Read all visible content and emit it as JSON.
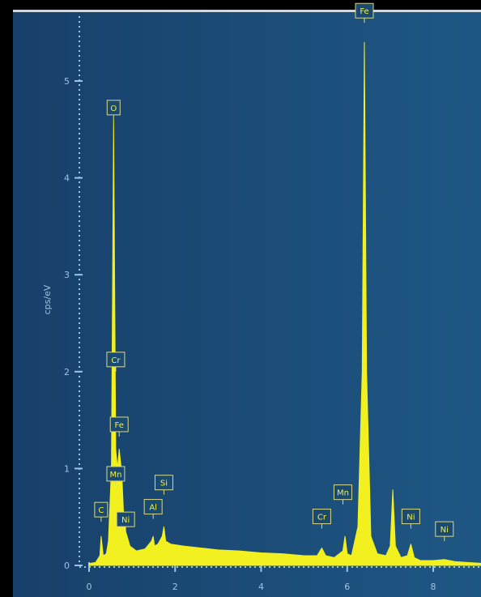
{
  "chart_data": {
    "type": "line",
    "title": "",
    "xlabel": "",
    "ylabel": "cps/eV",
    "xlim": [
      -0.3,
      9.2
    ],
    "ylim": [
      0,
      5.5
    ],
    "x_ticks": [
      "0",
      "2",
      "4",
      "6",
      "8"
    ],
    "x_tick_values": [
      0,
      2,
      4,
      6,
      8
    ],
    "y_ticks": [
      "0",
      "1",
      "2",
      "3",
      "4",
      "5"
    ],
    "y_tick_values": [
      0,
      1,
      2,
      3,
      4,
      5
    ],
    "fill_color": "#f2f01e",
    "background_color": "#1a4a72",
    "series": [
      {
        "x": [
          0.0,
          0.15,
          0.25,
          0.28,
          0.33,
          0.4,
          0.45,
          0.52,
          0.57,
          0.62,
          0.66,
          0.7,
          0.76,
          0.8,
          0.85,
          0.95,
          1.1,
          1.3,
          1.45,
          1.49,
          1.52,
          1.6,
          1.7,
          1.74,
          1.78,
          1.9,
          2.2,
          2.6,
          3.0,
          3.5,
          4.0,
          4.5,
          5.0,
          5.3,
          5.41,
          5.5,
          5.7,
          5.9,
          5.95,
          6.0,
          6.1,
          6.25,
          6.35,
          6.4,
          6.45,
          6.55,
          6.7,
          6.9,
          7.0,
          7.06,
          7.12,
          7.25,
          7.4,
          7.48,
          7.56,
          7.7,
          8.0,
          8.26,
          8.5,
          8.8,
          9.2
        ],
        "y": [
          0.02,
          0.03,
          0.1,
          0.3,
          0.1,
          0.12,
          0.25,
          1.0,
          4.6,
          1.2,
          1.0,
          1.2,
          0.95,
          0.55,
          0.35,
          0.2,
          0.15,
          0.17,
          0.25,
          0.3,
          0.2,
          0.22,
          0.3,
          0.4,
          0.25,
          0.22,
          0.2,
          0.18,
          0.16,
          0.15,
          0.13,
          0.12,
          0.1,
          0.1,
          0.18,
          0.1,
          0.08,
          0.15,
          0.3,
          0.12,
          0.1,
          0.4,
          2.0,
          5.4,
          2.0,
          0.3,
          0.12,
          0.1,
          0.2,
          0.78,
          0.2,
          0.08,
          0.1,
          0.22,
          0.08,
          0.05,
          0.05,
          0.06,
          0.04,
          0.03,
          0.02
        ]
      }
    ],
    "annotations": [
      {
        "label": "O",
        "x": 0.57,
        "y": 4.6
      },
      {
        "label": "Cr",
        "x": 0.62,
        "y": 2.0
      },
      {
        "label": "Fe",
        "x": 0.7,
        "y": 1.33
      },
      {
        "label": "Mn",
        "x": 0.62,
        "y": 0.82
      },
      {
        "label": "C",
        "x": 0.28,
        "y": 0.45
      },
      {
        "label": "Ni",
        "x": 0.85,
        "y": 0.35
      },
      {
        "label": "Al",
        "x": 1.49,
        "y": 0.48
      },
      {
        "label": "Si",
        "x": 1.74,
        "y": 0.73
      },
      {
        "label": "Fe",
        "x": 6.4,
        "y": 5.6
      },
      {
        "label": "Mn",
        "x": 5.9,
        "y": 0.63
      },
      {
        "label": "Cr",
        "x": 5.41,
        "y": 0.38
      },
      {
        "label": "Ni",
        "x": 7.48,
        "y": 0.38
      },
      {
        "label": "Ni",
        "x": 8.26,
        "y": 0.25
      }
    ]
  }
}
